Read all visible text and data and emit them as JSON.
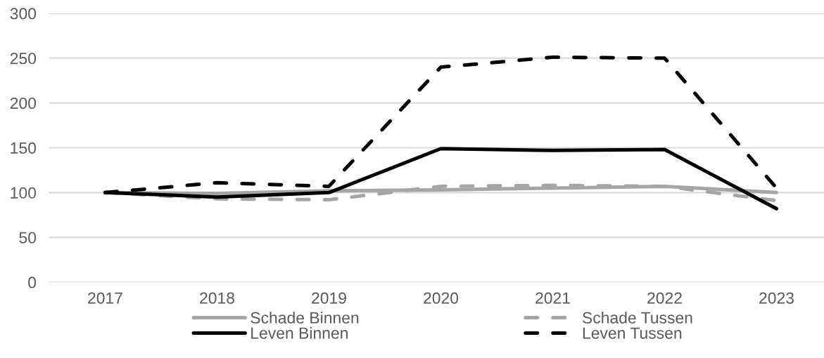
{
  "chart_data": {
    "type": "line",
    "categories": [
      "2017",
      "2018",
      "2019",
      "2020",
      "2021",
      "2022",
      "2023"
    ],
    "series": [
      {
        "name": "Schade Binnen",
        "color": "#a5a5a5",
        "line_style": "solid",
        "values": [
          100,
          99,
          102,
          103,
          105,
          107,
          100
        ]
      },
      {
        "name": "Schade Tussen",
        "color": "#a5a5a5",
        "line_style": "dashed",
        "values": [
          100,
          93,
          92,
          107,
          108,
          107,
          91
        ]
      },
      {
        "name": "Leven Binnen",
        "color": "#000000",
        "line_style": "solid",
        "values": [
          100,
          95,
          100,
          149,
          147,
          148,
          82
        ]
      },
      {
        "name": "Leven Tussen",
        "color": "#000000",
        "line_style": "dashed",
        "values": [
          100,
          111,
          107,
          240,
          251,
          250,
          105
        ]
      }
    ],
    "ylim": [
      0,
      300
    ],
    "yticks": [
      0,
      50,
      100,
      150,
      200,
      250,
      300
    ],
    "grid": "y",
    "legend": "bottom",
    "marker": "none"
  }
}
